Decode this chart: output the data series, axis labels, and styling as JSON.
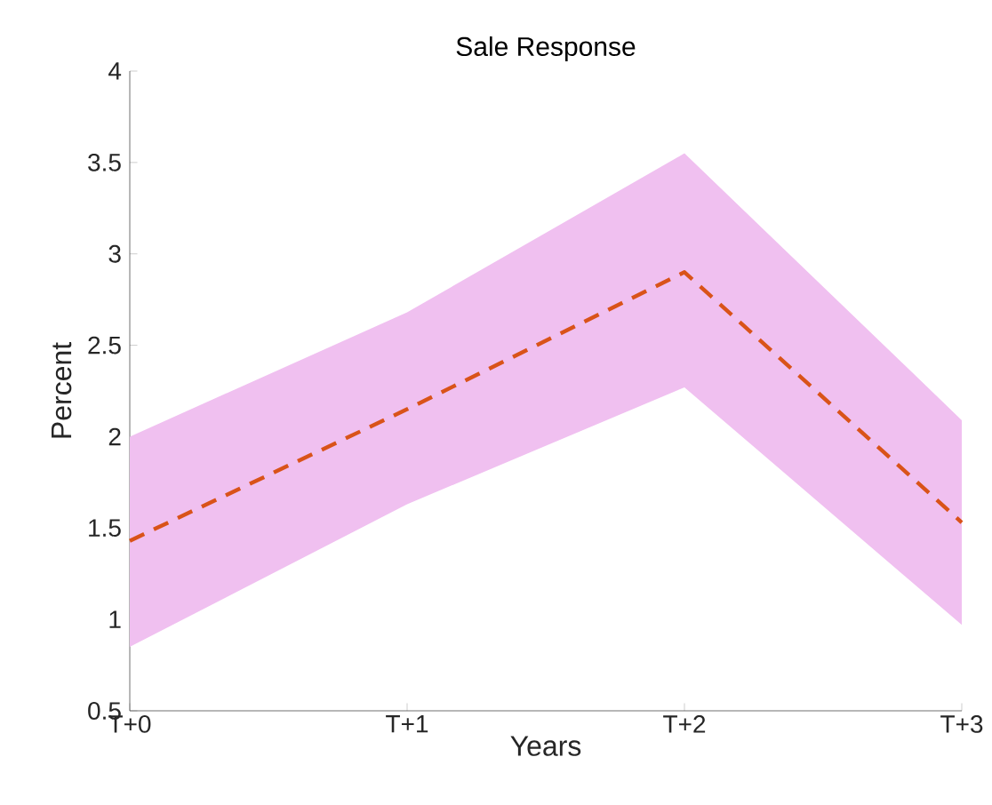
{
  "chart_data": {
    "type": "line",
    "title": "Sale Response",
    "xlabel": "Years",
    "ylabel": "Percent",
    "categories": [
      "T+0",
      "T+1",
      "T+2",
      "T+3"
    ],
    "series": [
      {
        "color": "#d95319",
        "values": [
          1.43,
          2.15,
          2.9,
          1.53
        ],
        "lower": [
          0.85,
          1.63,
          2.27,
          0.97
        ],
        "upper": [
          2.0,
          2.68,
          3.55,
          2.09
        ]
      }
    ],
    "ylim": [
      0.5,
      4
    ],
    "yticks": [
      0.5,
      1,
      1.5,
      2,
      2.5,
      3,
      3.5,
      4
    ],
    "line_style": "dashed",
    "marker": "none"
  }
}
